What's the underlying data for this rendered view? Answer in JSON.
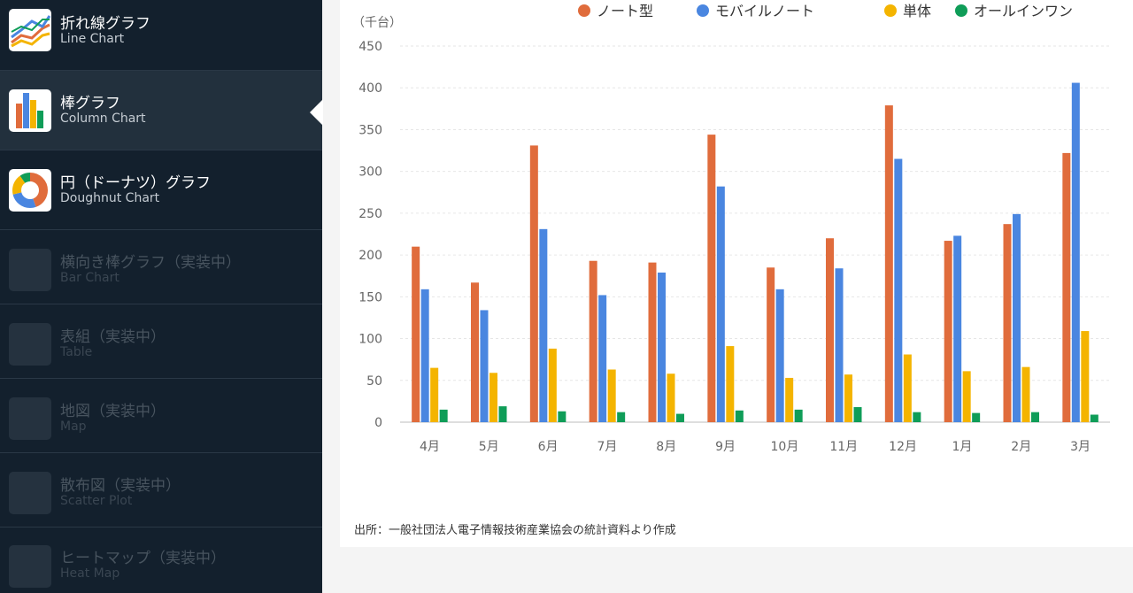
{
  "sidebar": {
    "items": [
      {
        "title": "折れ線グラフ",
        "subtitle": "Line Chart",
        "icon": "line-chart-icon",
        "state": "enabled"
      },
      {
        "title": "棒グラフ",
        "subtitle": "Column Chart",
        "icon": "column-chart-icon",
        "state": "active"
      },
      {
        "title": "円（ドーナツ）グラフ",
        "subtitle": "Doughnut Chart",
        "icon": "doughnut-chart-icon",
        "state": "enabled"
      },
      {
        "title": "横向き棒グラフ（実装中）",
        "subtitle": "Bar Chart",
        "icon": "placeholder-icon",
        "state": "disabled"
      },
      {
        "title": "表組（実装中）",
        "subtitle": "Table",
        "icon": "placeholder-icon",
        "state": "disabled"
      },
      {
        "title": "地図（実装中）",
        "subtitle": "Map",
        "icon": "placeholder-icon",
        "state": "disabled"
      },
      {
        "title": "散布図（実装中）",
        "subtitle": "Scatter Plot",
        "icon": "placeholder-icon",
        "state": "disabled"
      },
      {
        "title": "ヒートマップ（実装中）",
        "subtitle": "Heat Map",
        "icon": "placeholder-icon",
        "state": "disabled"
      }
    ]
  },
  "source_note": "出所：一般社団法人電子情報技術産業協会の統計資料より作成",
  "chart_data": {
    "type": "bar",
    "ylabel": "（千台）",
    "ylim": [
      0,
      450
    ],
    "yticks": [
      "0",
      "50",
      "100",
      "150",
      "200",
      "250",
      "300",
      "350",
      "400",
      "450"
    ],
    "grid": true,
    "legend_position": "top-right",
    "categories": [
      "4月",
      "5月",
      "6月",
      "7月",
      "8月",
      "9月",
      "10月",
      "11月",
      "12月",
      "1月",
      "2月",
      "3月"
    ],
    "series": [
      {
        "name": "ノート型",
        "color": "#e06c3c",
        "values": [
          210,
          167,
          331,
          193,
          191,
          344,
          185,
          220,
          379,
          217,
          237,
          322
        ]
      },
      {
        "name": "モバイルノート",
        "color": "#4a86e0",
        "values": [
          159,
          134,
          231,
          152,
          179,
          282,
          159,
          184,
          315,
          223,
          249,
          406
        ]
      },
      {
        "name": "単体",
        "color": "#f4b400",
        "values": [
          65,
          59,
          88,
          63,
          58,
          91,
          53,
          57,
          81,
          61,
          66,
          109
        ]
      },
      {
        "name": "オールインワン",
        "color": "#0f9d58",
        "values": [
          15,
          19,
          13,
          12,
          10,
          14,
          15,
          18,
          12,
          11,
          12,
          9
        ]
      }
    ]
  }
}
